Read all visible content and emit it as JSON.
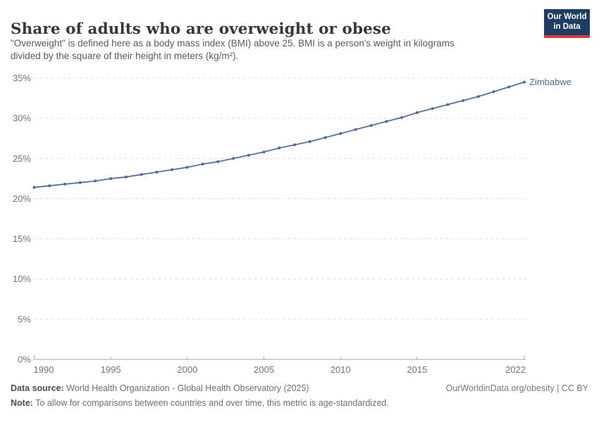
{
  "header": {
    "title": "Share of adults who are overweight or obese",
    "subtitle_lines": [
      "\"Overweight\" is defined here as a body mass index (BMI) above 25. BMI is a person's weight in kilograms",
      "divided by the square of their height in meters (kg/m²)."
    ],
    "logo": {
      "line1": "Our World",
      "line2": "in Data"
    }
  },
  "chart_data": {
    "type": "line",
    "title": "Share of adults who are overweight or obese",
    "xlabel": "",
    "ylabel": "",
    "grid": "horizontal-dashed",
    "legend_position": "end-of-line-label",
    "xlim": [
      1990,
      2022
    ],
    "ylim": [
      0,
      35
    ],
    "x_ticks": [
      1990,
      1995,
      2000,
      2005,
      2010,
      2015,
      2022
    ],
    "y_ticks": [
      0,
      5,
      10,
      15,
      20,
      25,
      30,
      35
    ],
    "y_tick_labels": [
      "0%",
      "5%",
      "10%",
      "15%",
      "20%",
      "25%",
      "30%",
      "35%"
    ],
    "x": [
      1990,
      1991,
      1992,
      1993,
      1994,
      1995,
      1996,
      1997,
      1998,
      1999,
      2000,
      2001,
      2002,
      2003,
      2004,
      2005,
      2006,
      2007,
      2008,
      2009,
      2010,
      2011,
      2012,
      2013,
      2014,
      2015,
      2016,
      2017,
      2018,
      2019,
      2020,
      2021,
      2022
    ],
    "series": [
      {
        "name": "Zimbabwe",
        "values": [
          21.4,
          21.6,
          21.8,
          22.0,
          22.2,
          22.5,
          22.7,
          23.0,
          23.3,
          23.6,
          23.9,
          24.3,
          24.6,
          25.0,
          25.4,
          25.8,
          26.3,
          26.7,
          27.1,
          27.6,
          28.1,
          28.6,
          29.1,
          29.6,
          30.1,
          30.7,
          31.2,
          31.7,
          32.2,
          32.7,
          33.3,
          33.9,
          34.5
        ]
      }
    ]
  },
  "footer": {
    "data_source_label": "Data source:",
    "data_source": "World Health Organization - Global Health Observatory (2025)",
    "link": "OurWorldinData.org/obesity | CC BY",
    "note_label": "Note:",
    "note": "To allow for comparisons between countries and over time, this metric is age-standardized."
  },
  "colors": {
    "line": "#4C6A9C",
    "entity_label": "#4C6A9C",
    "grid": "#DCDCDC",
    "axis": "#A5A5A5",
    "tick_text": "#737373",
    "logo_navy": "#1D3D63",
    "logo_red": "#D73C34"
  }
}
